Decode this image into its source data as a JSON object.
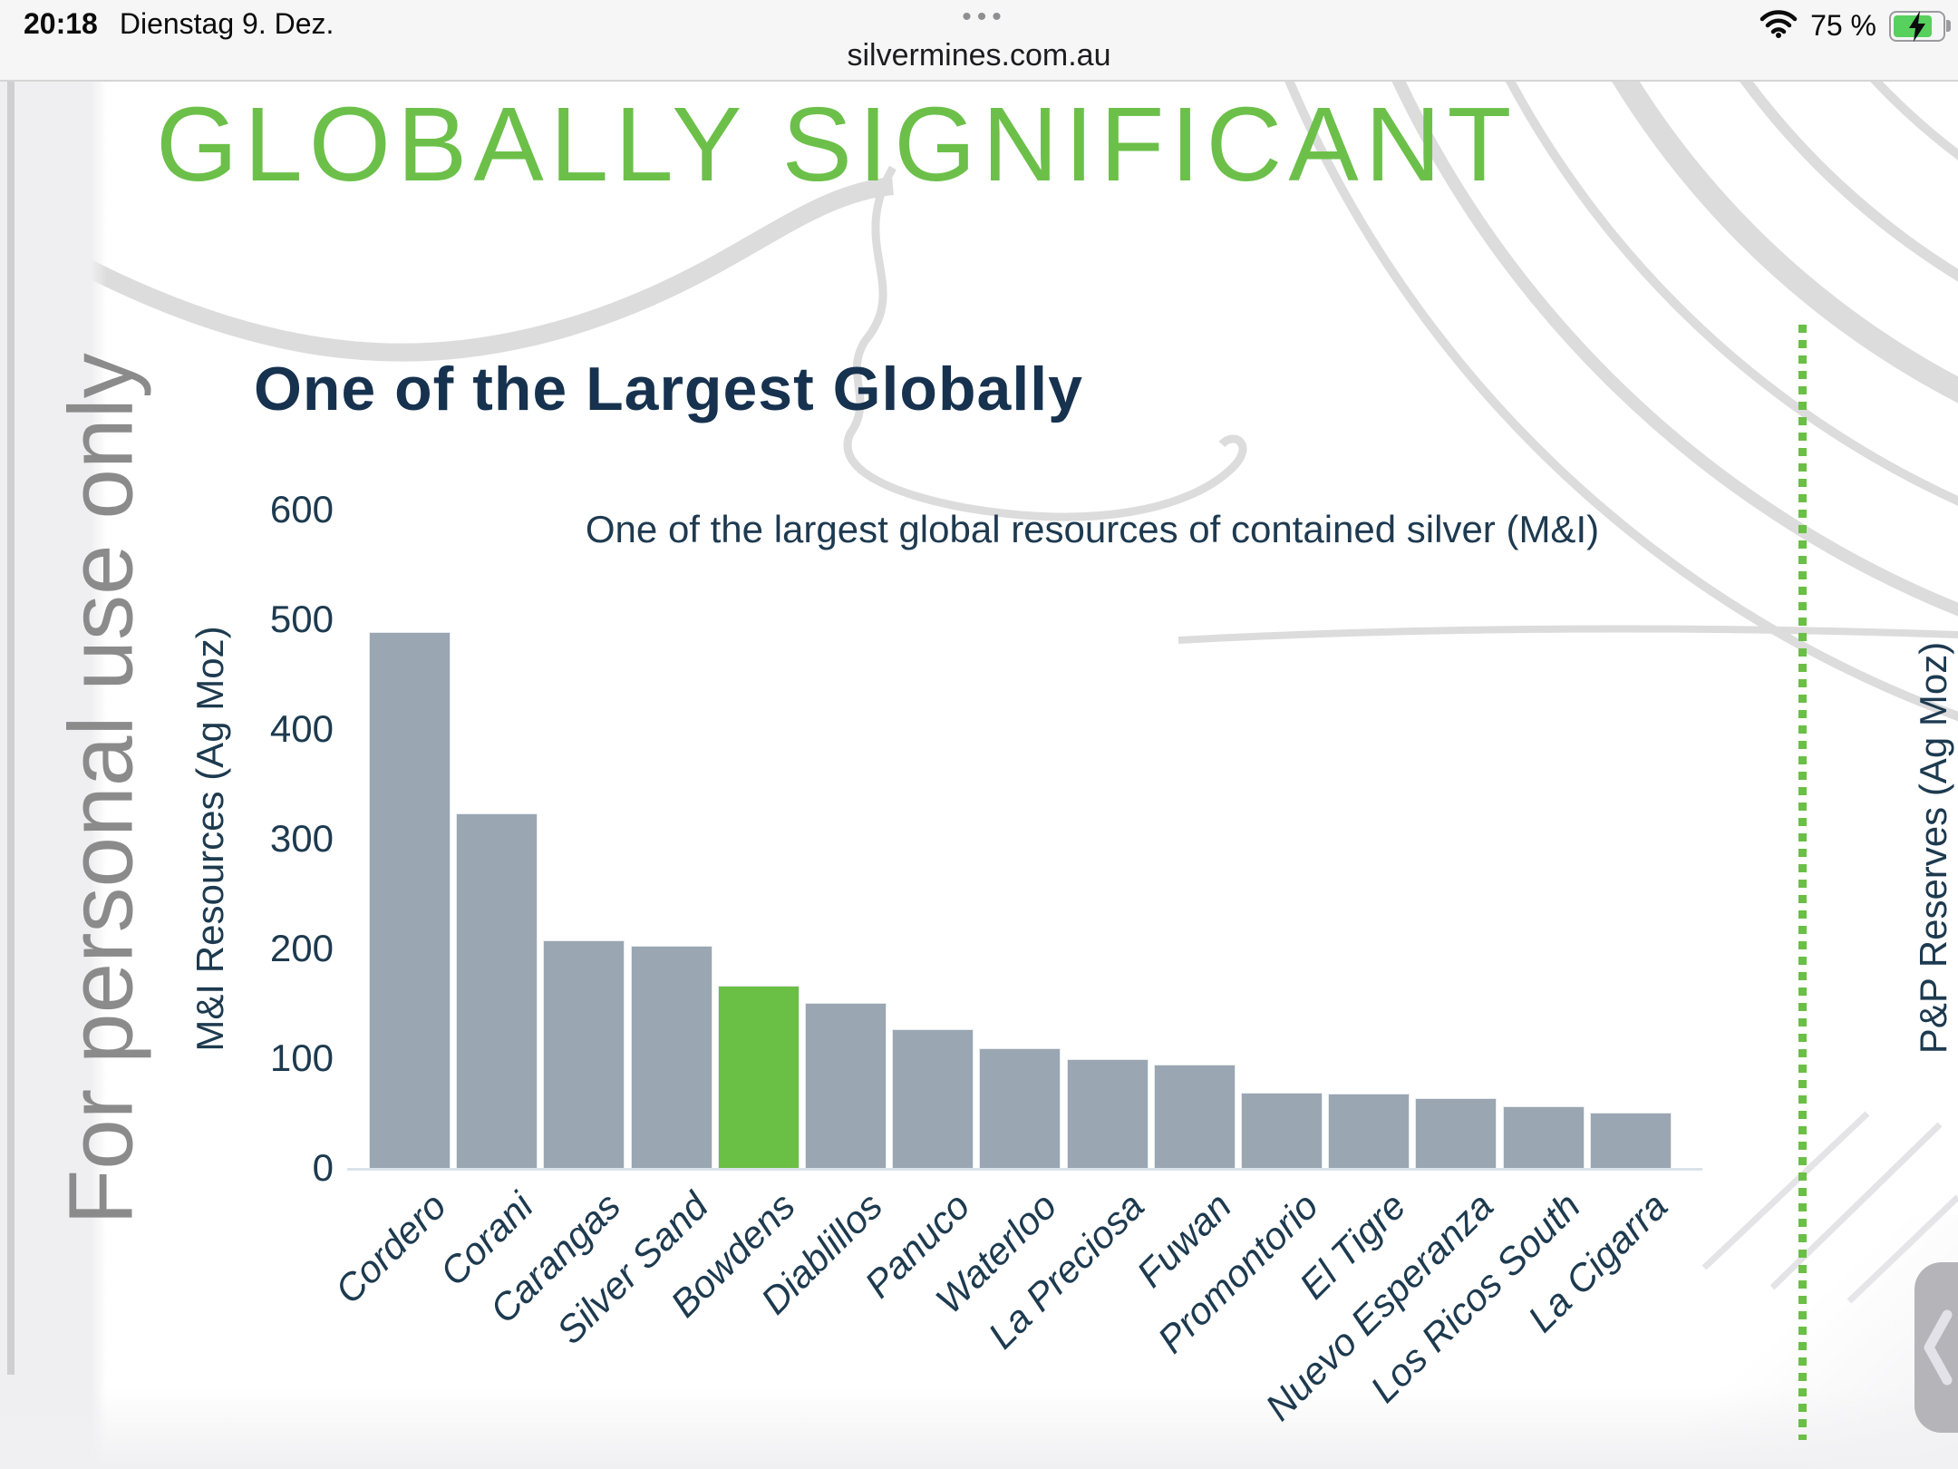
{
  "status_bar": {
    "time": "20:18",
    "date": "Dienstag 9. Dez.",
    "tab_dots": "•••",
    "battery_percent": "75 %"
  },
  "url_bar": {
    "domain": "silvermines.com.au"
  },
  "page": {
    "title": "GLOBALLY SIGNIFICANT",
    "watermark": "For personal use only",
    "heading": "One of the Largest Globally",
    "right_axis_label": "P&P Reserves (Ag Moz)"
  },
  "chart_data": {
    "type": "bar",
    "title": "One of the largest global resources of contained silver (M&I)",
    "ylabel": "M&I Resources (Ag Moz)",
    "xlabel": "",
    "ylim": [
      0,
      600
    ],
    "yticks": [
      0,
      100,
      200,
      300,
      400,
      500,
      600
    ],
    "grid": false,
    "legend": false,
    "categories": [
      "Cordero",
      "Corani",
      "Carangas",
      "Silver Sand",
      "Bowdens",
      "Diablillos",
      "Panuco",
      "Waterloo",
      "La Preciosa",
      "Fuwan",
      "Promontorio",
      "El Tigre",
      "Nuevo Esperanza",
      "Los Ricos South",
      "La Cigarra"
    ],
    "values": [
      488,
      322,
      207,
      202,
      165,
      150,
      126,
      108,
      98,
      93,
      68,
      67,
      63,
      55,
      50
    ],
    "highlight_index": 4,
    "highlight_category": "Bowdens",
    "bar_color": "#9aa6b1",
    "highlight_color": "#6abf45"
  },
  "colors": {
    "accent_green": "#6cc04a",
    "heading_navy": "#16324f",
    "axis_text": "#1d3a4f",
    "watermark_gray": "#8b8b8b",
    "dotted_line_green": "#6abf45"
  }
}
